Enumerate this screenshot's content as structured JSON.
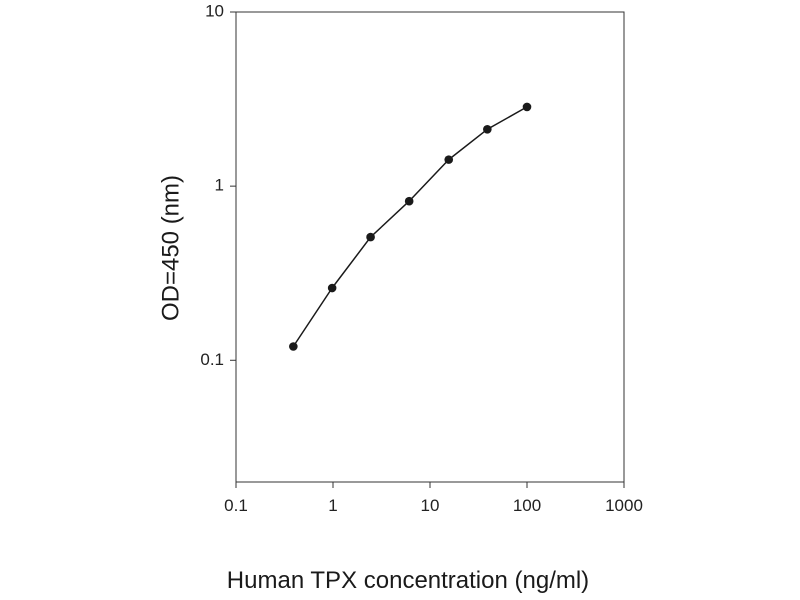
{
  "chart_data": {
    "type": "line",
    "xlabel": "Human TPX concentration (ng/ml)",
    "ylabel": "OD=450 (nm)",
    "x_scale": "log",
    "y_scale": "log",
    "xlim": [
      0.1,
      1000
    ],
    "ylim": [
      0.02,
      10
    ],
    "x_ticks": [
      "0.1",
      "1",
      "10",
      "100",
      "1000"
    ],
    "y_ticks": [
      "0.1",
      "1",
      "10"
    ],
    "grid": false,
    "series": [
      {
        "x": [
          0.39,
          0.98,
          2.44,
          6.1,
          15.6,
          39,
          100
        ],
        "y": [
          0.12,
          0.26,
          0.51,
          0.82,
          1.42,
          2.12,
          2.85
        ]
      }
    ],
    "colors": {
      "line": "#1a1a1a",
      "marker": "#1a1a1a",
      "axis": "#333333"
    }
  }
}
